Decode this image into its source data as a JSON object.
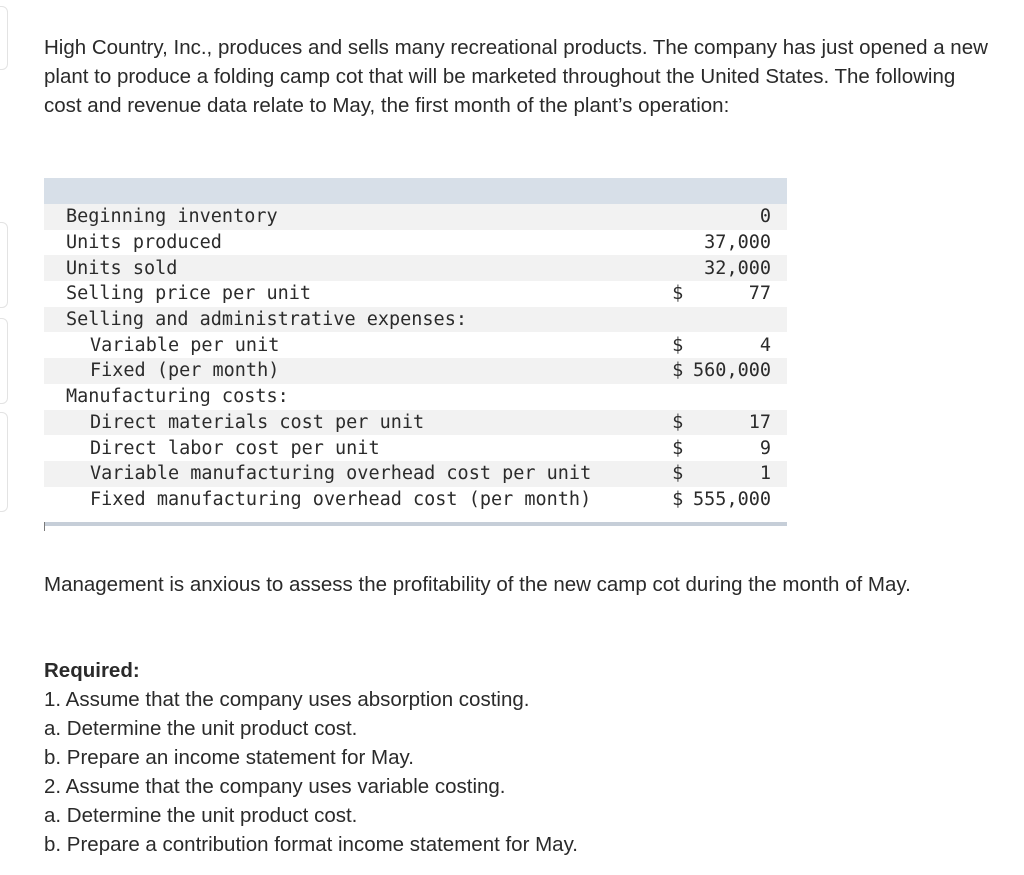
{
  "intro_text": "High Country, Inc., produces and sells many recreational products. The company has just opened a new plant to produce a folding camp cot that will be marketed throughout the United States. The following cost and revenue data relate to May, the first month of the plant’s operation:",
  "table": {
    "rows": [
      {
        "label": "Beginning inventory",
        "indent": false,
        "currency": "",
        "value": "0"
      },
      {
        "label": "Units produced",
        "indent": false,
        "currency": "",
        "value": "37,000"
      },
      {
        "label": "Units sold",
        "indent": false,
        "currency": "",
        "value": "32,000"
      },
      {
        "label": "Selling price per unit",
        "indent": false,
        "currency": "$",
        "value": "77"
      },
      {
        "label": "Selling and administrative expenses:",
        "indent": false,
        "currency": "",
        "value": ""
      },
      {
        "label": "Variable per unit",
        "indent": true,
        "currency": "$",
        "value": "4"
      },
      {
        "label": "Fixed (per month)",
        "indent": true,
        "currency": "$",
        "value": "560,000"
      },
      {
        "label": "Manufacturing costs:",
        "indent": false,
        "currency": "",
        "value": ""
      },
      {
        "label": "Direct materials cost per unit",
        "indent": true,
        "currency": "$",
        "value": "17"
      },
      {
        "label": "Direct labor cost per unit",
        "indent": true,
        "currency": "$",
        "value": "9"
      },
      {
        "label": "Variable manufacturing overhead cost per unit",
        "indent": true,
        "currency": "$",
        "value": "1"
      },
      {
        "label": "Fixed manufacturing overhead cost (per month)",
        "indent": true,
        "currency": "$",
        "value": "555,000"
      }
    ]
  },
  "management_text": "Management is anxious to assess the profitability of the new camp cot during the month of May.",
  "required": {
    "heading": "Required:",
    "items": [
      "1. Assume that the company uses absorption costing.",
      "a. Determine the unit product cost.",
      "b. Prepare an income statement for May.",
      "2. Assume that the company uses variable costing.",
      "a. Determine the unit product cost.",
      "b. Prepare a contribution format income statement for May."
    ]
  }
}
